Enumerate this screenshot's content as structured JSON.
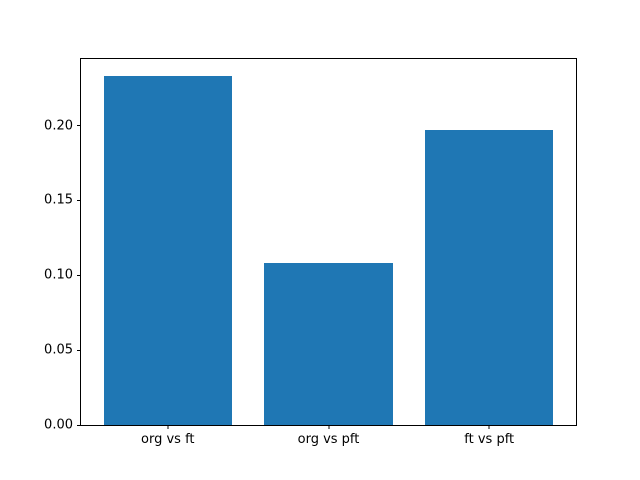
{
  "figure": {
    "background": "#ffffff"
  },
  "chart_data": {
    "type": "bar",
    "title": "",
    "xlabel": "",
    "ylabel": "",
    "categories": [
      "org vs ft",
      "org vs pft",
      "ft vs pft"
    ],
    "values": [
      0.233,
      0.108,
      0.197
    ],
    "ylim": [
      0,
      0.2445
    ],
    "xlim": [
      -0.54,
      2.54
    ],
    "bar_width": 0.8,
    "yticks": [
      0,
      0.05,
      0.1,
      0.15,
      0.2
    ],
    "ytick_labels": [
      "0.00",
      "0.05",
      "0.10",
      "0.15",
      "0.20"
    ],
    "bar_color": "#1f77b4",
    "axis_color": "#000000",
    "grid": false,
    "legend": null
  }
}
